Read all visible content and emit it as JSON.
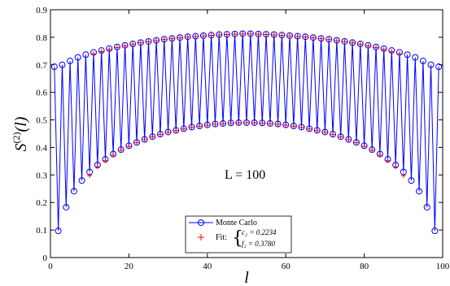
{
  "chart_data": {
    "type": "line",
    "xlabel": "l",
    "ylabel_base": "S",
    "ylabel_sup": "(2)",
    "ylabel_arg": "(l)",
    "xlim": [
      0,
      100
    ],
    "ylim": [
      0,
      0.9
    ],
    "x_ticks": [
      0,
      20,
      40,
      60,
      80,
      100
    ],
    "y_ticks": [
      0,
      0.1,
      0.2,
      0.3,
      0.4,
      0.5,
      0.6,
      0.7,
      0.8,
      0.9
    ],
    "annotation": "L = 100",
    "legend": {
      "position": "bottom-center",
      "monte_carlo_label": "Monte Carlo",
      "fit_label": "Fit:",
      "fit_param_1": "c₂ = 0.2234",
      "fit_param_2": "f₂ = 0.3780"
    },
    "series": [
      {
        "name": "Monte Carlo",
        "color": "#0000ff",
        "marker": "circle",
        "x": [
          1,
          2,
          3,
          4,
          5,
          6,
          7,
          8,
          9,
          10,
          11,
          12,
          13,
          14,
          15,
          16,
          17,
          18,
          19,
          20,
          21,
          22,
          23,
          24,
          25,
          26,
          27,
          28,
          29,
          30,
          31,
          32,
          33,
          34,
          35,
          36,
          37,
          38,
          39,
          40,
          41,
          42,
          43,
          44,
          45,
          46,
          47,
          48,
          49,
          50,
          51,
          52,
          53,
          54,
          55,
          56,
          57,
          58,
          59,
          60,
          61,
          62,
          63,
          64,
          65,
          66,
          67,
          68,
          69,
          70,
          71,
          72,
          73,
          74,
          75,
          76,
          77,
          78,
          79,
          80,
          81,
          82,
          83,
          84,
          85,
          86,
          87,
          88,
          89,
          90,
          91,
          92,
          93,
          94,
          95,
          96,
          97,
          98,
          99
        ],
        "y": [
          0.693,
          0.097,
          0.7,
          0.183,
          0.714,
          0.241,
          0.727,
          0.28,
          0.737,
          0.311,
          0.745,
          0.336,
          0.752,
          0.357,
          0.759,
          0.376,
          0.765,
          0.392,
          0.771,
          0.406,
          0.776,
          0.418,
          0.781,
          0.429,
          0.785,
          0.439,
          0.789,
          0.448,
          0.793,
          0.456,
          0.796,
          0.462,
          0.799,
          0.468,
          0.802,
          0.474,
          0.804,
          0.478,
          0.806,
          0.482,
          0.808,
          0.485,
          0.81,
          0.487,
          0.811,
          0.489,
          0.812,
          0.49,
          0.813,
          0.49,
          0.813,
          0.49,
          0.812,
          0.489,
          0.811,
          0.487,
          0.81,
          0.485,
          0.808,
          0.482,
          0.806,
          0.478,
          0.804,
          0.474,
          0.802,
          0.468,
          0.799,
          0.462,
          0.796,
          0.456,
          0.793,
          0.448,
          0.789,
          0.439,
          0.785,
          0.429,
          0.781,
          0.418,
          0.776,
          0.406,
          0.771,
          0.392,
          0.765,
          0.376,
          0.759,
          0.357,
          0.752,
          0.336,
          0.745,
          0.311,
          0.737,
          0.28,
          0.727,
          0.241,
          0.714,
          0.183,
          0.7,
          0.097,
          0.693
        ]
      },
      {
        "name": "Fit",
        "color": "#ff0000",
        "marker": "plus",
        "x": [
          10,
          11,
          12,
          13,
          14,
          15,
          16,
          17,
          18,
          19,
          20,
          21,
          22,
          23,
          24,
          25,
          26,
          27,
          28,
          29,
          30,
          31,
          32,
          33,
          34,
          35,
          36,
          37,
          38,
          39,
          40,
          41,
          42,
          43,
          44,
          45,
          46,
          47,
          48,
          49,
          50,
          51,
          52,
          53,
          54,
          55,
          56,
          57,
          58,
          59,
          60,
          61,
          62,
          63,
          64,
          65,
          66,
          67,
          68,
          69,
          70,
          71,
          72,
          73,
          74,
          75,
          76,
          77,
          78,
          79,
          80,
          81,
          82,
          83,
          84,
          85,
          86,
          87,
          88,
          89,
          90
        ],
        "y": [
          0.298,
          0.74,
          0.33,
          0.748,
          0.352,
          0.756,
          0.372,
          0.763,
          0.39,
          0.769,
          0.404,
          0.775,
          0.417,
          0.78,
          0.428,
          0.784,
          0.438,
          0.788,
          0.447,
          0.792,
          0.455,
          0.795,
          0.461,
          0.798,
          0.467,
          0.801,
          0.473,
          0.803,
          0.477,
          0.805,
          0.481,
          0.807,
          0.484,
          0.809,
          0.486,
          0.81,
          0.488,
          0.811,
          0.489,
          0.812,
          0.49,
          0.812,
          0.489,
          0.811,
          0.488,
          0.81,
          0.486,
          0.809,
          0.484,
          0.807,
          0.481,
          0.805,
          0.477,
          0.803,
          0.473,
          0.801,
          0.467,
          0.798,
          0.461,
          0.795,
          0.455,
          0.792,
          0.447,
          0.788,
          0.438,
          0.784,
          0.428,
          0.78,
          0.417,
          0.775,
          0.404,
          0.769,
          0.39,
          0.763,
          0.372,
          0.756,
          0.352,
          0.748,
          0.33,
          0.74,
          0.298
        ]
      }
    ]
  }
}
